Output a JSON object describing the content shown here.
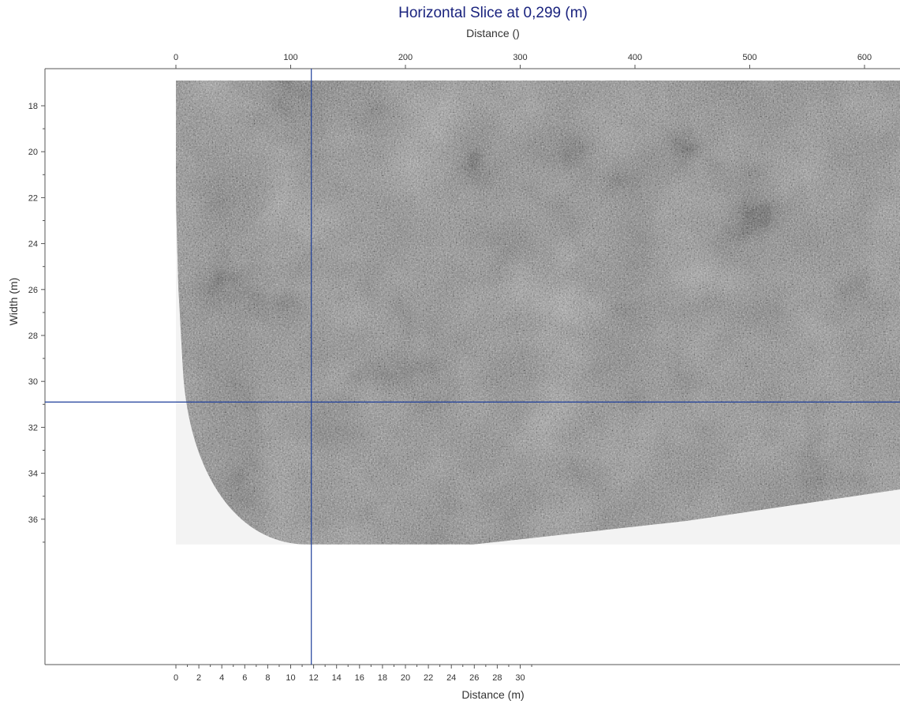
{
  "chart_data": {
    "type": "heatmap",
    "title": "Horizontal Slice at 0,299 (m)",
    "colormap": "grayscale",
    "x_top": {
      "label": "Distance ()",
      "ticks": [
        0,
        100,
        200,
        300,
        400,
        500,
        600
      ],
      "range": [
        0,
        630
      ]
    },
    "x_bottom": {
      "label": "Distance (m)",
      "ticks": [
        0,
        2,
        4,
        6,
        8,
        10,
        12,
        14,
        16,
        18,
        20,
        22,
        24,
        26,
        28,
        30
      ],
      "range": [
        0,
        31.5
      ]
    },
    "y": {
      "label": "Width (m)",
      "ticks": [
        18,
        20,
        22,
        24,
        26,
        28,
        30,
        32,
        34,
        36
      ],
      "range": [
        16.6,
        42
      ]
    },
    "data_extent": {
      "x": [
        0,
        31.5
      ],
      "y": [
        16.9,
        37.1
      ]
    },
    "crosshair": {
      "x": 11.8,
      "y": 30.9,
      "color": "#1f3f9a"
    },
    "colors": {
      "data_gray": "#888888",
      "background_fill": "#f3f3f3",
      "crosshair": "#1f3f9a",
      "title": "#1a237e"
    }
  }
}
